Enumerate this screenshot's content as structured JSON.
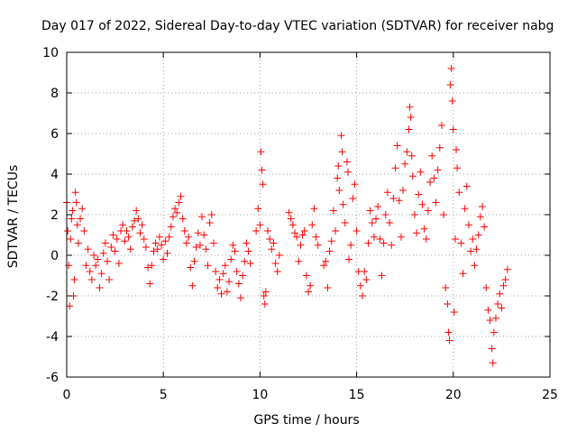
{
  "chart_data": {
    "type": "scatter",
    "title": "Day 017 of 2022, Sidereal Day-to-day VTEC variation (SDTVAR) for receiver nabg",
    "xlabel": "GPS time / hours",
    "ylabel": "SDTVAR / TECUs",
    "xlim": [
      0,
      25
    ],
    "ylim": [
      -6,
      10
    ],
    "x_ticks": [
      0,
      5,
      10,
      15,
      20,
      25
    ],
    "y_ticks": [
      -6,
      -4,
      -2,
      0,
      2,
      4,
      6,
      8,
      10
    ],
    "grid": true,
    "marker": "+",
    "color": "#ff0000",
    "series": [
      {
        "name": "SDTVAR",
        "points": [
          [
            0.0,
            2.6
          ],
          [
            0.05,
            1.2
          ],
          [
            0.1,
            -0.5
          ],
          [
            0.15,
            -2.5
          ],
          [
            0.2,
            0.8
          ],
          [
            0.25,
            1.8
          ],
          [
            0.3,
            2.2
          ],
          [
            0.35,
            -2.0
          ],
          [
            0.4,
            -1.2
          ],
          [
            0.45,
            3.1
          ],
          [
            0.5,
            2.6
          ],
          [
            0.55,
            1.5
          ],
          [
            0.6,
            0.6
          ],
          [
            0.7,
            1.8
          ],
          [
            0.8,
            2.3
          ],
          [
            0.9,
            1.2
          ],
          [
            1.0,
            -0.5
          ],
          [
            1.1,
            0.3
          ],
          [
            1.2,
            -0.8
          ],
          [
            1.3,
            -1.2
          ],
          [
            1.4,
            0.0
          ],
          [
            1.5,
            -0.5
          ],
          [
            1.6,
            -0.2
          ],
          [
            1.7,
            -1.6
          ],
          [
            1.8,
            -0.9
          ],
          [
            1.9,
            0.1
          ],
          [
            2.0,
            0.6
          ],
          [
            2.1,
            -0.3
          ],
          [
            2.2,
            -1.2
          ],
          [
            2.3,
            0.4
          ],
          [
            2.4,
            1.0
          ],
          [
            2.5,
            0.2
          ],
          [
            2.6,
            0.8
          ],
          [
            2.7,
            -0.4
          ],
          [
            2.8,
            1.2
          ],
          [
            2.9,
            1.5
          ],
          [
            3.0,
            0.7
          ],
          [
            3.1,
            1.2
          ],
          [
            3.2,
            0.9
          ],
          [
            3.3,
            0.3
          ],
          [
            3.4,
            1.4
          ],
          [
            3.5,
            1.7
          ],
          [
            3.6,
            2.2
          ],
          [
            3.7,
            1.8
          ],
          [
            3.8,
            1.1
          ],
          [
            3.9,
            1.5
          ],
          [
            4.0,
            0.8
          ],
          [
            4.1,
            0.4
          ],
          [
            4.2,
            -0.6
          ],
          [
            4.3,
            -1.4
          ],
          [
            4.4,
            -0.5
          ],
          [
            4.5,
            0.2
          ],
          [
            4.6,
            0.6
          ],
          [
            4.7,
            0.3
          ],
          [
            4.8,
            0.9
          ],
          [
            4.9,
            0.5
          ],
          [
            5.0,
            -0.2
          ],
          [
            5.1,
            0.7
          ],
          [
            5.2,
            0.1
          ],
          [
            5.3,
            0.9
          ],
          [
            5.4,
            1.4
          ],
          [
            5.5,
            1.9
          ],
          [
            5.6,
            2.3
          ],
          [
            5.7,
            2.1
          ],
          [
            5.8,
            2.6
          ],
          [
            5.9,
            2.9
          ],
          [
            6.0,
            1.8
          ],
          [
            6.1,
            1.2
          ],
          [
            6.2,
            0.6
          ],
          [
            6.3,
            0.9
          ],
          [
            6.4,
            -0.6
          ],
          [
            6.5,
            -1.5
          ],
          [
            6.6,
            -0.3
          ],
          [
            6.7,
            0.4
          ],
          [
            6.8,
            1.1
          ],
          [
            6.9,
            0.5
          ],
          [
            7.0,
            1.9
          ],
          [
            7.1,
            1.0
          ],
          [
            7.2,
            0.3
          ],
          [
            7.3,
            -0.5
          ],
          [
            7.4,
            1.6
          ],
          [
            7.5,
            2.0
          ],
          [
            7.6,
            0.6
          ],
          [
            7.7,
            -0.8
          ],
          [
            7.8,
            -1.6
          ],
          [
            7.9,
            -1.2
          ],
          [
            8.0,
            -1.9
          ],
          [
            8.1,
            -0.9
          ],
          [
            8.2,
            -0.5
          ],
          [
            8.3,
            -1.8
          ],
          [
            8.4,
            -1.3
          ],
          [
            8.5,
            -0.2
          ],
          [
            8.6,
            0.5
          ],
          [
            8.7,
            0.2
          ],
          [
            8.8,
            -0.8
          ],
          [
            8.9,
            -1.4
          ],
          [
            9.0,
            -2.1
          ],
          [
            9.1,
            -1.0
          ],
          [
            9.2,
            -0.3
          ],
          [
            9.3,
            0.6
          ],
          [
            9.4,
            0.2
          ],
          [
            9.5,
            -0.4
          ],
          [
            9.8,
            1.2
          ],
          [
            9.9,
            2.3
          ],
          [
            10.0,
            1.5
          ],
          [
            10.05,
            5.1
          ],
          [
            10.1,
            4.2
          ],
          [
            10.15,
            3.5
          ],
          [
            10.2,
            -2.0
          ],
          [
            10.25,
            -2.4
          ],
          [
            10.3,
            -1.8
          ],
          [
            10.4,
            1.2
          ],
          [
            10.5,
            0.8
          ],
          [
            10.6,
            0.3
          ],
          [
            10.7,
            0.6
          ],
          [
            10.8,
            -0.4
          ],
          [
            10.9,
            -0.8
          ],
          [
            11.0,
            0.0
          ],
          [
            11.5,
            2.1
          ],
          [
            11.6,
            1.8
          ],
          [
            11.7,
            1.5
          ],
          [
            11.8,
            1.1
          ],
          [
            11.9,
            0.9
          ],
          [
            12.0,
            -0.3
          ],
          [
            12.1,
            0.5
          ],
          [
            12.2,
            1.0
          ],
          [
            12.3,
            1.2
          ],
          [
            12.4,
            -1.0
          ],
          [
            12.5,
            -1.8
          ],
          [
            12.6,
            -1.5
          ],
          [
            12.7,
            1.5
          ],
          [
            12.8,
            2.3
          ],
          [
            12.9,
            0.9
          ],
          [
            13.0,
            0.5
          ],
          [
            13.3,
            -0.5
          ],
          [
            13.4,
            -0.3
          ],
          [
            13.5,
            -1.6
          ],
          [
            13.6,
            0.2
          ],
          [
            13.7,
            0.7
          ],
          [
            13.8,
            2.2
          ],
          [
            13.9,
            1.2
          ],
          [
            14.0,
            3.8
          ],
          [
            14.05,
            4.4
          ],
          [
            14.1,
            3.2
          ],
          [
            14.2,
            5.9
          ],
          [
            14.25,
            5.1
          ],
          [
            14.3,
            2.5
          ],
          [
            14.4,
            1.6
          ],
          [
            14.5,
            4.6
          ],
          [
            14.55,
            4.1
          ],
          [
            14.6,
            -0.2
          ],
          [
            14.7,
            0.5
          ],
          [
            14.8,
            2.8
          ],
          [
            14.9,
            3.5
          ],
          [
            15.0,
            1.2
          ],
          [
            15.1,
            -0.8
          ],
          [
            15.2,
            -1.5
          ],
          [
            15.3,
            -2.0
          ],
          [
            15.4,
            -0.8
          ],
          [
            15.5,
            -1.2
          ],
          [
            15.6,
            0.6
          ],
          [
            15.7,
            2.2
          ],
          [
            15.8,
            1.6
          ],
          [
            15.9,
            0.9
          ],
          [
            16.0,
            1.8
          ],
          [
            16.1,
            2.4
          ],
          [
            16.2,
            0.8
          ],
          [
            16.3,
            -1.0
          ],
          [
            16.4,
            0.6
          ],
          [
            16.5,
            2.0
          ],
          [
            16.6,
            3.1
          ],
          [
            16.7,
            1.6
          ],
          [
            16.8,
            0.5
          ],
          [
            16.9,
            2.8
          ],
          [
            17.0,
            4.3
          ],
          [
            17.1,
            5.4
          ],
          [
            17.2,
            2.7
          ],
          [
            17.3,
            0.9
          ],
          [
            17.4,
            3.2
          ],
          [
            17.5,
            4.5
          ],
          [
            17.6,
            5.1
          ],
          [
            17.7,
            6.2
          ],
          [
            17.75,
            7.3
          ],
          [
            17.8,
            6.8
          ],
          [
            17.85,
            4.9
          ],
          [
            17.9,
            3.9
          ],
          [
            18.0,
            2.0
          ],
          [
            18.1,
            1.1
          ],
          [
            18.2,
            3.0
          ],
          [
            18.3,
            4.1
          ],
          [
            18.4,
            2.5
          ],
          [
            18.5,
            1.3
          ],
          [
            18.6,
            0.8
          ],
          [
            18.7,
            2.2
          ],
          [
            18.8,
            3.6
          ],
          [
            18.9,
            4.9
          ],
          [
            19.0,
            3.8
          ],
          [
            19.1,
            2.6
          ],
          [
            19.2,
            4.2
          ],
          [
            19.3,
            5.3
          ],
          [
            19.4,
            6.4
          ],
          [
            19.5,
            2.0
          ],
          [
            19.6,
            -1.6
          ],
          [
            19.7,
            -2.4
          ],
          [
            19.75,
            -3.8
          ],
          [
            19.8,
            -4.2
          ],
          [
            19.85,
            8.4
          ],
          [
            19.9,
            9.2
          ],
          [
            19.95,
            7.6
          ],
          [
            20.0,
            6.2
          ],
          [
            20.05,
            -2.8
          ],
          [
            20.1,
            0.8
          ],
          [
            20.15,
            5.2
          ],
          [
            20.2,
            4.3
          ],
          [
            20.3,
            3.1
          ],
          [
            20.4,
            0.6
          ],
          [
            20.5,
            -0.9
          ],
          [
            20.6,
            2.3
          ],
          [
            20.7,
            3.4
          ],
          [
            20.8,
            1.5
          ],
          [
            20.9,
            0.2
          ],
          [
            21.0,
            0.8
          ],
          [
            21.1,
            -0.5
          ],
          [
            21.2,
            0.3
          ],
          [
            21.3,
            1.0
          ],
          [
            21.4,
            1.9
          ],
          [
            21.5,
            2.4
          ],
          [
            21.6,
            1.4
          ],
          [
            21.7,
            -1.6
          ],
          [
            21.8,
            -2.7
          ],
          [
            21.9,
            -3.2
          ],
          [
            22.0,
            -4.6
          ],
          [
            22.05,
            -5.3
          ],
          [
            22.1,
            -3.8
          ],
          [
            22.2,
            -3.1
          ],
          [
            22.3,
            -2.4
          ],
          [
            22.4,
            -1.9
          ],
          [
            22.5,
            -2.6
          ],
          [
            22.6,
            -1.5
          ],
          [
            22.7,
            -1.2
          ],
          [
            22.8,
            -0.7
          ]
        ]
      }
    ]
  }
}
